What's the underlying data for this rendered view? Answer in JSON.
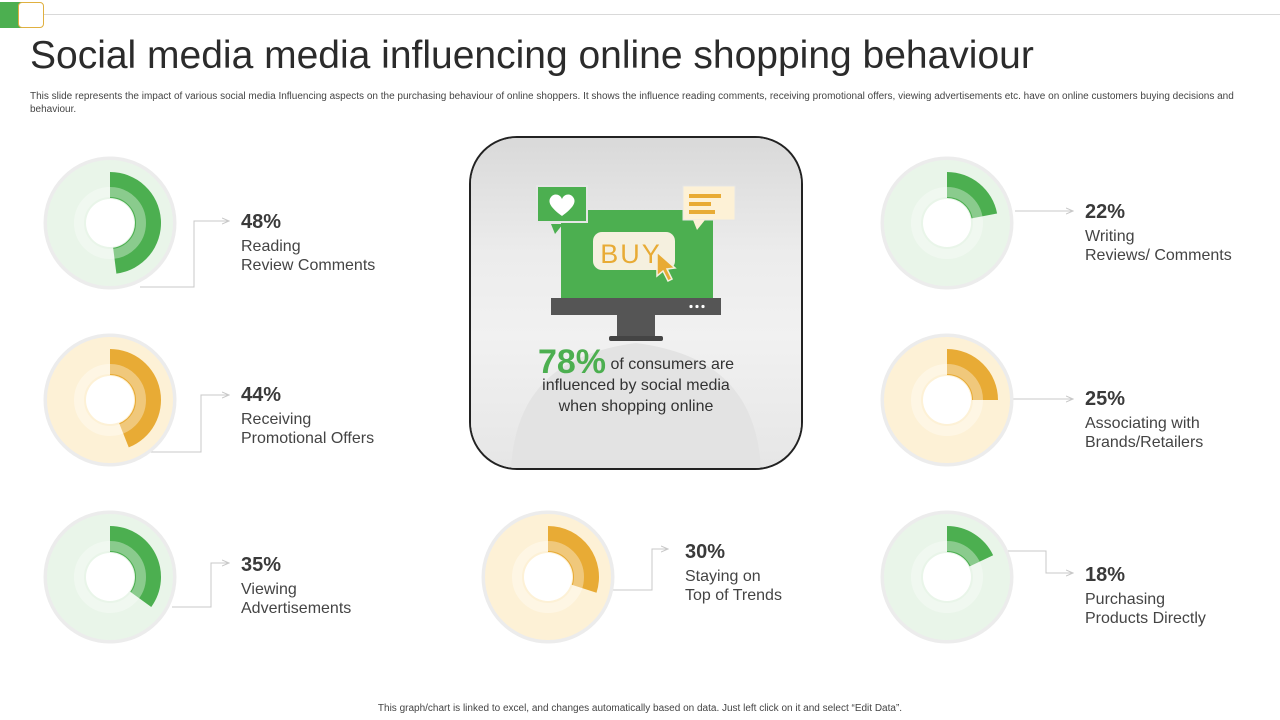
{
  "title": "Social media media influencing online shopping behaviour",
  "subtitle": "This slide represents the impact of various social media Influencing aspects on the purchasing behaviour of online shoppers. It shows the influence reading comments, receiving promotional offers, viewing advertisements etc. have on online customers buying decisions and behaviour.",
  "footer": "This graph/chart is linked to excel, and changes automatically based on data. Just left click on it and select “Edit Data”.",
  "colors": {
    "green": "#4caf50",
    "orange": "#e8ab35",
    "green_light": "#e9f5e9",
    "orange_light": "#fdf1d6"
  },
  "center": {
    "value_text": "78%",
    "text_line1": "of consumers are",
    "text_line2": "influenced by social media",
    "text_line3": "when shopping online",
    "buy_label": "BUY",
    "icons": [
      "monitor-icon",
      "heart-bubble-icon",
      "message-bubble-icon",
      "cursor-icon"
    ]
  },
  "chart_data": {
    "type": "pie",
    "items": [
      {
        "value": 48,
        "label_pct": "48%",
        "line1": "Reading",
        "line2": "Review Comments",
        "color": "green"
      },
      {
        "value": 44,
        "label_pct": "44%",
        "line1": "Receiving",
        "line2": "Promotional Offers",
        "color": "orange"
      },
      {
        "value": 35,
        "label_pct": "35%",
        "line1": "Viewing",
        "line2": "Advertisements",
        "color": "green"
      },
      {
        "value": 30,
        "label_pct": "30%",
        "line1": "Staying on",
        "line2": "Top of Trends",
        "color": "orange"
      },
      {
        "value": 22,
        "label_pct": "22%",
        "line1": "Writing",
        "line2": "Reviews/ Comments",
        "color": "green"
      },
      {
        "value": 25,
        "label_pct": "25%",
        "line1": "Associating with",
        "line2": "Brands/Retailers",
        "color": "orange"
      },
      {
        "value": 18,
        "label_pct": "18%",
        "line1": "Purchasing",
        "line2": "Products Directly",
        "color": "green"
      }
    ]
  }
}
